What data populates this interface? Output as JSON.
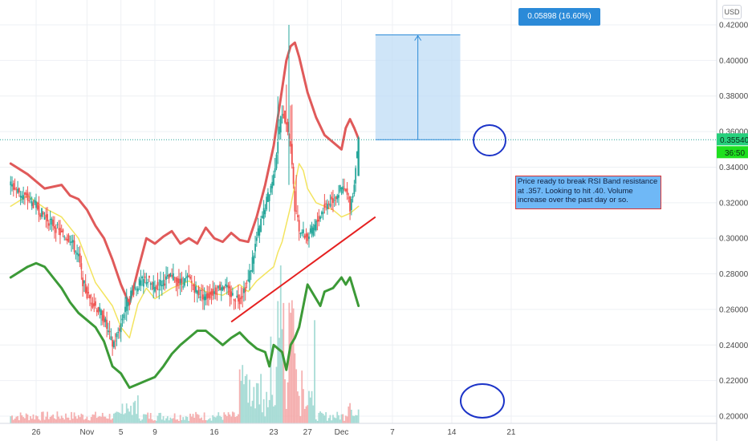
{
  "chart_data": {
    "type": "candlestick",
    "currency_label": "USD",
    "price_axis_ticks": [
      "0.42000",
      "0.40000",
      "0.38000",
      "0.36000",
      "0.34000",
      "0.32000",
      "0.30000",
      "0.28000",
      "0.26000",
      "0.24000",
      "0.22000",
      "0.20000"
    ],
    "price_range": [
      0.199,
      0.423
    ],
    "date_axis_ticks": [
      {
        "label": "26",
        "day": 0
      },
      {
        "label": "Nov",
        "day": 6
      },
      {
        "label": "5",
        "day": 10
      },
      {
        "label": "9",
        "day": 14
      },
      {
        "label": "16",
        "day": 21
      },
      {
        "label": "23",
        "day": 28
      },
      {
        "label": "27",
        "day": 32
      },
      {
        "label": "Dec",
        "day": 36
      },
      {
        "label": "7",
        "day": 42
      },
      {
        "label": "14",
        "day": 49
      },
      {
        "label": "21",
        "day": 56
      }
    ],
    "last_price": {
      "label": "0.35540",
      "value": 0.3554,
      "timer": "36:50"
    },
    "price_series": [
      [
        -3,
        0.33
      ],
      [
        -1,
        0.322
      ],
      [
        0,
        0.318
      ],
      [
        1,
        0.312
      ],
      [
        2,
        0.308
      ],
      [
        3,
        0.302
      ],
      [
        4,
        0.3
      ],
      [
        5,
        0.289
      ],
      [
        5.5,
        0.276
      ],
      [
        6,
        0.268
      ],
      [
        7,
        0.262
      ],
      [
        8,
        0.255
      ],
      [
        8.5,
        0.247
      ],
      [
        9,
        0.24
      ],
      [
        9.5,
        0.245
      ],
      [
        10,
        0.252
      ],
      [
        10.5,
        0.262
      ],
      [
        11,
        0.268
      ],
      [
        12,
        0.274
      ],
      [
        13,
        0.277
      ],
      [
        14,
        0.272
      ],
      [
        15,
        0.276
      ],
      [
        16,
        0.278
      ],
      [
        17,
        0.275
      ],
      [
        18,
        0.277
      ],
      [
        19,
        0.27
      ],
      [
        20,
        0.267
      ],
      [
        21,
        0.27
      ],
      [
        22,
        0.274
      ],
      [
        23,
        0.268
      ],
      [
        24,
        0.266
      ],
      [
        25,
        0.276
      ],
      [
        26,
        0.3
      ],
      [
        27,
        0.318
      ],
      [
        28,
        0.335
      ],
      [
        28.5,
        0.356
      ],
      [
        29,
        0.372
      ],
      [
        29.5,
        0.364
      ],
      [
        30,
        0.352
      ],
      [
        30.5,
        0.318
      ],
      [
        31,
        0.305
      ],
      [
        32,
        0.3
      ],
      [
        33,
        0.308
      ],
      [
        34,
        0.318
      ],
      [
        35,
        0.322
      ],
      [
        36,
        0.328
      ],
      [
        36.5,
        0.326
      ],
      [
        37,
        0.318
      ],
      [
        37.5,
        0.33
      ],
      [
        37.7,
        0.345
      ],
      [
        38,
        0.3554
      ]
    ],
    "upper_band": [
      [
        -3,
        0.342
      ],
      [
        -1,
        0.336
      ],
      [
        1,
        0.328
      ],
      [
        3,
        0.33
      ],
      [
        4,
        0.324
      ],
      [
        5,
        0.322
      ],
      [
        6,
        0.316
      ],
      [
        7,
        0.307
      ],
      [
        8,
        0.3
      ],
      [
        9,
        0.288
      ],
      [
        10,
        0.274
      ],
      [
        11,
        0.263
      ],
      [
        12,
        0.282
      ],
      [
        13,
        0.3
      ],
      [
        14,
        0.297
      ],
      [
        15,
        0.301
      ],
      [
        16,
        0.304
      ],
      [
        17,
        0.297
      ],
      [
        18,
        0.3
      ],
      [
        19,
        0.297
      ],
      [
        20,
        0.306
      ],
      [
        21,
        0.3
      ],
      [
        22,
        0.298
      ],
      [
        23,
        0.303
      ],
      [
        24,
        0.299
      ],
      [
        25,
        0.298
      ],
      [
        26,
        0.312
      ],
      [
        27,
        0.33
      ],
      [
        28,
        0.352
      ],
      [
        28.5,
        0.368
      ],
      [
        29,
        0.384
      ],
      [
        29.5,
        0.4
      ],
      [
        30,
        0.408
      ],
      [
        30.5,
        0.41
      ],
      [
        31,
        0.402
      ],
      [
        32,
        0.382
      ],
      [
        33,
        0.368
      ],
      [
        34,
        0.358
      ],
      [
        35,
        0.354
      ],
      [
        36,
        0.35
      ],
      [
        36.5,
        0.362
      ],
      [
        37,
        0.367
      ],
      [
        37.5,
        0.362
      ],
      [
        38,
        0.356
      ]
    ],
    "middle_band": [
      [
        -3,
        0.318
      ],
      [
        -1,
        0.324
      ],
      [
        1,
        0.317
      ],
      [
        3,
        0.312
      ],
      [
        5,
        0.3
      ],
      [
        7,
        0.275
      ],
      [
        9,
        0.262
      ],
      [
        10,
        0.25
      ],
      [
        11,
        0.244
      ],
      [
        12,
        0.263
      ],
      [
        13,
        0.272
      ],
      [
        14,
        0.266
      ],
      [
        16,
        0.272
      ],
      [
        18,
        0.276
      ],
      [
        20,
        0.27
      ],
      [
        22,
        0.268
      ],
      [
        24,
        0.274
      ],
      [
        25,
        0.27
      ],
      [
        26,
        0.276
      ],
      [
        27,
        0.28
      ],
      [
        28,
        0.284
      ],
      [
        28.5,
        0.292
      ],
      [
        29,
        0.298
      ],
      [
        30,
        0.318
      ],
      [
        31,
        0.342
      ],
      [
        31.5,
        0.338
      ],
      [
        32,
        0.328
      ],
      [
        33,
        0.32
      ],
      [
        34,
        0.318
      ],
      [
        35,
        0.316
      ],
      [
        36,
        0.312
      ],
      [
        37,
        0.314
      ],
      [
        37.5,
        0.316
      ],
      [
        38,
        0.318
      ]
    ],
    "lower_band": [
      [
        -3,
        0.278
      ],
      [
        -1,
        0.284
      ],
      [
        0,
        0.286
      ],
      [
        1,
        0.284
      ],
      [
        2,
        0.278
      ],
      [
        3,
        0.272
      ],
      [
        4,
        0.264
      ],
      [
        5,
        0.258
      ],
      [
        6,
        0.254
      ],
      [
        7,
        0.25
      ],
      [
        8,
        0.242
      ],
      [
        9,
        0.228
      ],
      [
        10,
        0.224
      ],
      [
        11,
        0.216
      ],
      [
        12,
        0.218
      ],
      [
        13,
        0.22
      ],
      [
        14,
        0.222
      ],
      [
        15,
        0.228
      ],
      [
        16,
        0.235
      ],
      [
        17,
        0.24
      ],
      [
        18,
        0.244
      ],
      [
        19,
        0.248
      ],
      [
        20,
        0.248
      ],
      [
        21,
        0.244
      ],
      [
        22,
        0.24
      ],
      [
        23,
        0.244
      ],
      [
        24,
        0.247
      ],
      [
        25,
        0.242
      ],
      [
        26,
        0.238
      ],
      [
        27,
        0.236
      ],
      [
        27.5,
        0.228
      ],
      [
        28,
        0.24
      ],
      [
        29,
        0.236
      ],
      [
        29.5,
        0.226
      ],
      [
        30,
        0.24
      ],
      [
        30.5,
        0.244
      ],
      [
        31,
        0.25
      ],
      [
        32,
        0.274
      ],
      [
        33,
        0.266
      ],
      [
        33.5,
        0.262
      ],
      [
        34,
        0.27
      ],
      [
        35,
        0.272
      ],
      [
        36,
        0.278
      ],
      [
        36.5,
        0.274
      ],
      [
        37,
        0.278
      ],
      [
        37.5,
        0.27
      ],
      [
        38,
        0.262
      ]
    ],
    "trendline": {
      "from": [
        23,
        0.253
      ],
      "to": [
        40,
        0.312
      ]
    },
    "measure": {
      "label": "0.05898 (16.60%) 5898",
      "from_value": 0.3554,
      "to_value": 0.41438,
      "from_day": 40,
      "to_day": 50
    },
    "annotation": "Price ready to break RSI Band resistance at .357. Looking to hit .40. Volume increase over the past day or so."
  }
}
